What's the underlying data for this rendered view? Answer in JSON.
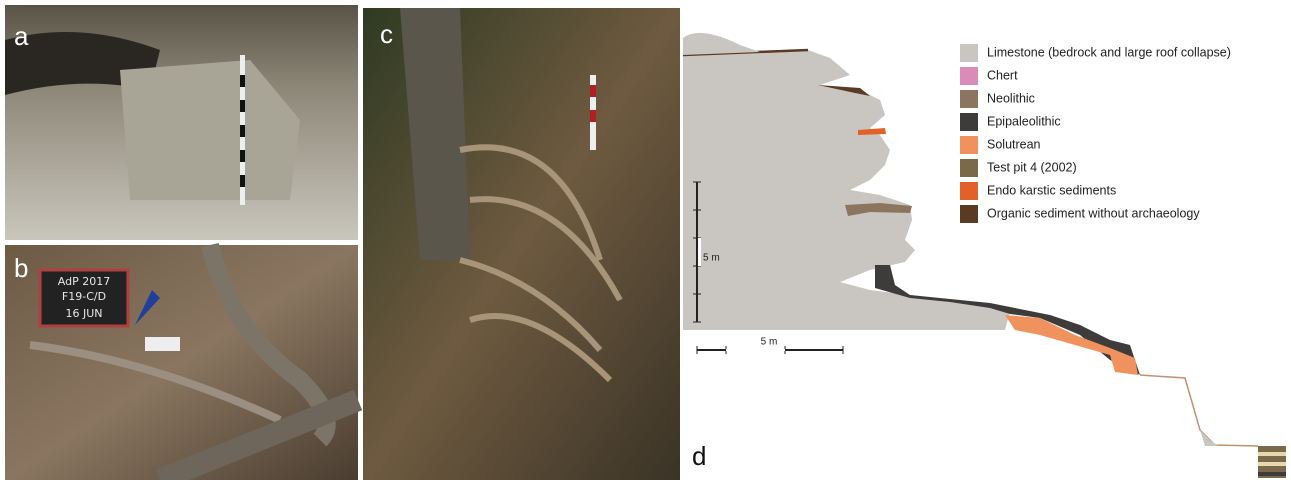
{
  "panels": {
    "a": "a",
    "b": "b",
    "c": "c",
    "d": "d"
  },
  "blackboard": [
    "AdP 2017",
    "F19-C/D",
    "16 JUN"
  ],
  "legend": [
    {
      "label": "Limestone (bedrock and large roof collapse)",
      "color": "#c9c5c1"
    },
    {
      "label": "Chert",
      "color": "#d98cb8"
    },
    {
      "label": "Neolithic",
      "color": "#8b7560"
    },
    {
      "label": "Epipaleolithic",
      "color": "#3e3c3a"
    },
    {
      "label": "Solutrean",
      "color": "#f0925e"
    },
    {
      "label": "Test pit 4 (2002)",
      "color": "#7a6a4a"
    },
    {
      "label": "Endo karstic sediments",
      "color": "#e0622a"
    },
    {
      "label": "Organic sediment without archaeology",
      "color": "#5a3a20"
    }
  ],
  "scale": {
    "vertical": "5 m",
    "horizontal": "5 m"
  }
}
